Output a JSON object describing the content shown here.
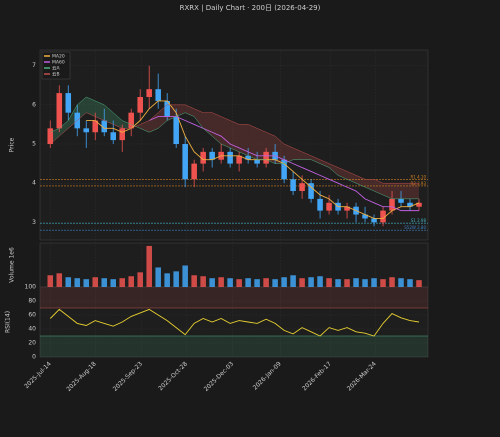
{
  "chart_data": {
    "type": "candlestick",
    "title": "RXRX  |  Daily Chart · 200日  (2026-04-29)",
    "ylabel": "Price",
    "up_color": "#ef5350",
    "down_color": "#42a5f5",
    "grid": true,
    "legend": "upper left",
    "xlim": [
      "2025-07-06",
      "2026-05-04"
    ],
    "xticks": [
      {
        "value": "2025-07-14",
        "label": "2025-Jul-14"
      },
      {
        "value": "2025-08-18",
        "label": "2025-Aug-18"
      },
      {
        "value": "2025-09-23",
        "label": "2025-Sep-23"
      },
      {
        "value": "2025-10-28",
        "label": "2025-Oct-28"
      },
      {
        "value": "2025-12-03",
        "label": "2025-Dec-03"
      },
      {
        "value": "2026-01-09",
        "label": "2026-Jan-09"
      },
      {
        "value": "2026-02-17",
        "label": "2026-Feb-17"
      },
      {
        "value": "2026-03-24",
        "label": "2026-Mar-24"
      }
    ],
    "ylim": [
      2.55,
      7.4
    ],
    "yticks": [
      3,
      4,
      5,
      6,
      7
    ],
    "x": [
      "2025-07-14",
      "2025-07-21",
      "2025-07-28",
      "2025-08-04",
      "2025-08-11",
      "2025-08-18",
      "2025-08-25",
      "2025-09-01",
      "2025-09-08",
      "2025-09-15",
      "2025-09-22",
      "2025-09-29",
      "2025-10-06",
      "2025-10-13",
      "2025-10-20",
      "2025-10-27",
      "2025-11-03",
      "2025-11-10",
      "2025-11-17",
      "2025-11-24",
      "2025-12-01",
      "2025-12-08",
      "2025-12-15",
      "2025-12-22",
      "2025-12-29",
      "2026-01-05",
      "2026-01-12",
      "2026-01-19",
      "2026-01-26",
      "2026-02-02",
      "2026-02-09",
      "2026-02-16",
      "2026-02-23",
      "2026-03-02",
      "2026-03-09",
      "2026-03-16",
      "2026-03-23",
      "2026-03-30",
      "2026-04-06",
      "2026-04-13",
      "2026-04-20",
      "2026-04-27"
    ],
    "open": [
      5.0,
      5.4,
      6.3,
      5.8,
      5.4,
      5.3,
      5.6,
      5.3,
      5.1,
      5.4,
      5.8,
      6.2,
      6.4,
      6.1,
      5.7,
      5.0,
      4.1,
      4.5,
      4.8,
      4.6,
      4.8,
      4.5,
      4.7,
      4.6,
      4.5,
      4.8,
      4.6,
      4.1,
      3.8,
      4.0,
      3.6,
      3.3,
      3.5,
      3.3,
      3.4,
      3.2,
      3.1,
      3.0,
      3.3,
      3.6,
      3.5,
      3.4
    ],
    "high": [
      5.6,
      6.5,
      6.5,
      6.0,
      5.6,
      5.8,
      5.9,
      5.6,
      5.5,
      5.9,
      6.4,
      7.0,
      6.8,
      6.3,
      5.9,
      5.2,
      4.6,
      4.9,
      4.9,
      5.0,
      4.9,
      4.8,
      4.9,
      4.8,
      4.9,
      5.0,
      4.7,
      4.3,
      4.2,
      4.1,
      3.8,
      3.7,
      3.6,
      3.5,
      3.5,
      3.4,
      3.2,
      3.4,
      3.8,
      3.8,
      3.6,
      3.6
    ],
    "low": [
      4.9,
      5.3,
      5.6,
      5.2,
      4.9,
      5.1,
      5.2,
      5.0,
      4.8,
      5.2,
      5.6,
      5.9,
      5.9,
      5.6,
      4.9,
      3.9,
      3.9,
      4.3,
      4.4,
      4.5,
      4.4,
      4.3,
      4.5,
      4.4,
      4.4,
      4.5,
      4.0,
      3.7,
      3.6,
      3.5,
      3.1,
      3.2,
      3.2,
      3.1,
      3.0,
      3.0,
      2.9,
      2.9,
      3.2,
      3.4,
      3.3,
      3.3
    ],
    "close": [
      5.4,
      6.3,
      5.8,
      5.4,
      5.3,
      5.6,
      5.3,
      5.1,
      5.4,
      5.8,
      6.2,
      6.4,
      6.1,
      5.7,
      5.0,
      4.1,
      4.5,
      4.8,
      4.6,
      4.8,
      4.5,
      4.7,
      4.6,
      4.5,
      4.8,
      4.6,
      4.1,
      3.8,
      4.0,
      3.6,
      3.3,
      3.5,
      3.3,
      3.4,
      3.2,
      3.1,
      3.0,
      3.3,
      3.6,
      3.5,
      3.4,
      3.5
    ],
    "series": [
      {
        "name": "MA20",
        "color": "#f0b040",
        "values": [
          null,
          null,
          null,
          null,
          5.6,
          5.6,
          5.4,
          5.4,
          5.3,
          5.4,
          5.6,
          5.9,
          6.1,
          6.1,
          5.8,
          5.2,
          4.8,
          4.6,
          4.6,
          4.7,
          4.7,
          4.7,
          4.6,
          4.6,
          4.6,
          4.6,
          4.5,
          4.3,
          4.1,
          3.9,
          3.7,
          3.6,
          3.4,
          3.4,
          3.3,
          3.2,
          3.1,
          3.1,
          3.3,
          3.4,
          3.4,
          3.5
        ]
      },
      {
        "name": "MA60",
        "color": "#c060e0",
        "values": [
          null,
          null,
          null,
          null,
          null,
          null,
          null,
          null,
          null,
          null,
          null,
          5.6,
          5.7,
          5.7,
          5.7,
          5.6,
          5.5,
          5.4,
          5.3,
          5.2,
          5.0,
          4.9,
          4.8,
          4.7,
          4.7,
          4.7,
          4.6,
          4.5,
          4.4,
          4.3,
          4.2,
          4.1,
          4.0,
          3.9,
          3.8,
          3.6,
          3.5,
          3.4,
          3.4,
          3.3,
          3.3,
          3.3
        ]
      },
      {
        "name": "云A",
        "color": "#4caf80",
        "values": [
          5.3,
          5.4,
          5.6,
          6.0,
          6.2,
          6.1,
          6.0,
          5.8,
          5.6,
          5.5,
          5.4,
          5.3,
          5.4,
          5.6,
          5.7,
          5.8,
          5.7,
          5.4,
          5.2,
          5.0,
          4.9,
          4.8,
          4.7,
          4.6,
          4.6,
          4.5,
          4.5,
          4.6,
          4.6,
          4.6,
          4.5,
          4.4,
          4.2,
          4.1,
          4.0,
          3.9,
          3.8,
          3.7,
          3.6,
          3.6,
          3.6,
          3.6
        ]
      },
      {
        "name": "云B",
        "color": "#c0504d",
        "values": [
          5.0,
          5.2,
          5.4,
          5.6,
          5.8,
          5.7,
          5.6,
          5.5,
          5.4,
          5.4,
          5.5,
          5.6,
          5.8,
          6.0,
          6.0,
          6.0,
          5.9,
          5.8,
          5.8,
          5.7,
          5.6,
          5.5,
          5.5,
          5.4,
          5.3,
          5.2,
          5.0,
          4.9,
          4.8,
          4.7,
          4.6,
          4.5,
          4.4,
          4.3,
          4.2,
          4.1,
          4.1,
          4.0,
          4.0,
          4.0,
          4.0,
          4.0
        ]
      }
    ],
    "levels": [
      {
        "value": 4.1,
        "label": "R1 4.10",
        "color": "#d08020"
      },
      {
        "value": 3.93,
        "label": "R2 3.93",
        "color": "#d08020"
      },
      {
        "value": 2.98,
        "label": "S1 2.98",
        "color": "#3fb0c0"
      },
      {
        "value": 2.8,
        "label": "S52W 2.80",
        "color": "#3f7fc0"
      }
    ],
    "volume": {
      "ylabel": "Volume 1e6",
      "ylim": [
        0,
        45
      ],
      "values": [
        12,
        14,
        10,
        9,
        8,
        10,
        9,
        8,
        9,
        11,
        15,
        42,
        20,
        14,
        16,
        22,
        12,
        11,
        9,
        10,
        9,
        8,
        9,
        8,
        9,
        8,
        10,
        12,
        9,
        10,
        11,
        9,
        8,
        8,
        9,
        8,
        9,
        8,
        10,
        9,
        8,
        7
      ]
    },
    "rsi": {
      "ylabel": "RSI(14)",
      "color": "#e8d030",
      "ylim": [
        0,
        100
      ],
      "yticks": [
        0,
        20,
        40,
        60,
        80,
        100
      ],
      "overbought": 70,
      "oversold": 30,
      "values": [
        55,
        68,
        58,
        48,
        45,
        52,
        48,
        44,
        50,
        58,
        63,
        68,
        60,
        52,
        42,
        32,
        48,
        55,
        50,
        55,
        48,
        52,
        50,
        48,
        54,
        48,
        38,
        33,
        42,
        36,
        30,
        42,
        38,
        42,
        36,
        34,
        30,
        48,
        62,
        56,
        52,
        50
      ]
    }
  }
}
